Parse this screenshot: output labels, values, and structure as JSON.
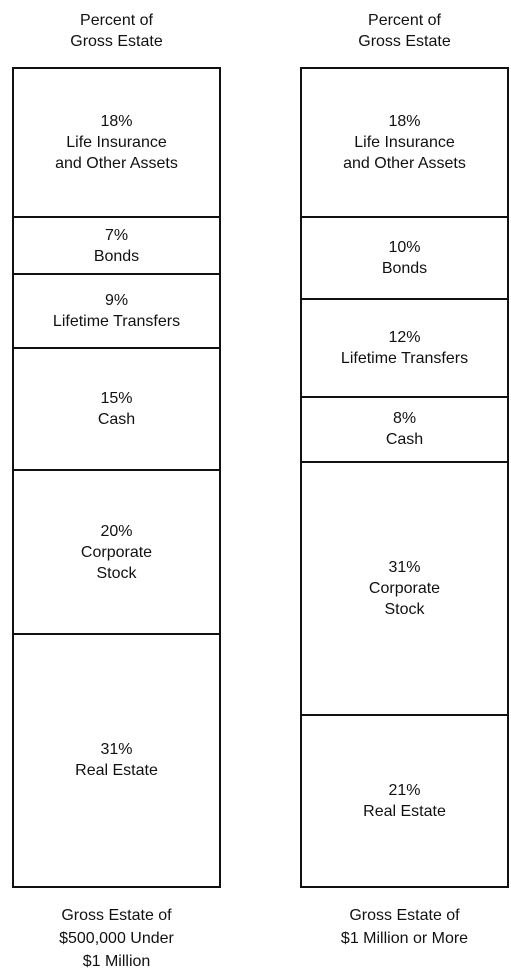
{
  "chart_data": {
    "type": "stacked_column",
    "y_label": "Percent of\nGross Estate",
    "categories": [
      "Gross Estate of\n$500,000 Under\n$1 Million",
      "Gross Estate of\n$1 Million or More"
    ],
    "ylim": [
      0,
      100
    ],
    "series": [
      {
        "name": "Life Insurance\nand Other Assets",
        "values": [
          18,
          18
        ],
        "value_labels": [
          "18%",
          "18%"
        ]
      },
      {
        "name": "Bonds",
        "values": [
          7,
          10
        ],
        "value_labels": [
          "7%",
          "10%"
        ]
      },
      {
        "name": "Lifetime Transfers",
        "values": [
          9,
          12
        ],
        "value_labels": [
          "9%",
          "12%"
        ]
      },
      {
        "name": "Cash",
        "values": [
          15,
          8
        ],
        "value_labels": [
          "15%",
          "8%"
        ]
      },
      {
        "name": "Corporate\nStock",
        "values": [
          20,
          31
        ],
        "value_labels": [
          "20%",
          "31%"
        ]
      },
      {
        "name": "Real Estate",
        "values": [
          31,
          21
        ],
        "value_labels": [
          "31%",
          "21%"
        ]
      }
    ]
  }
}
